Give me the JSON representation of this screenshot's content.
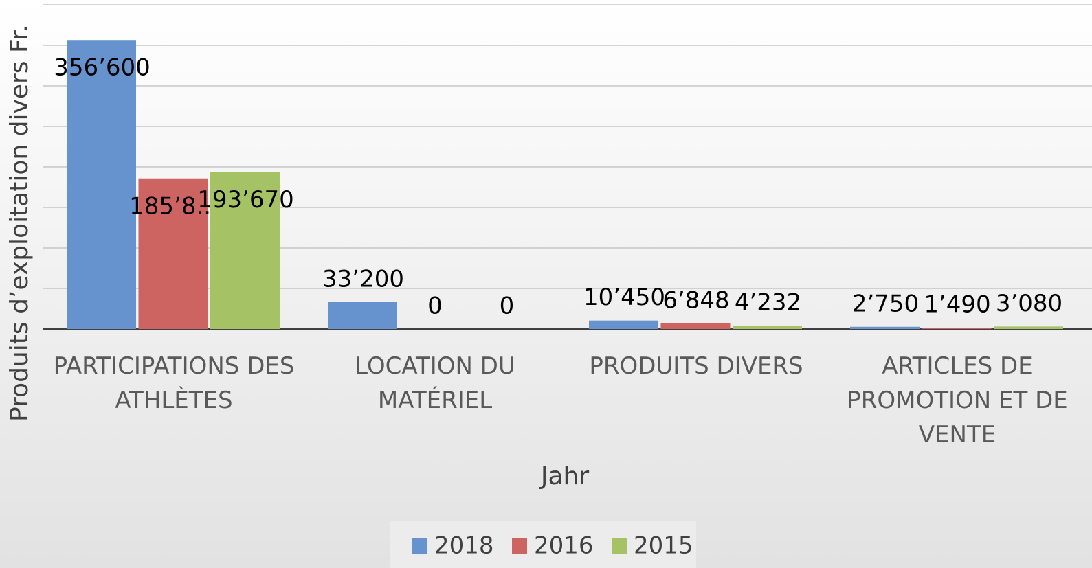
{
  "chart_data": {
    "type": "bar",
    "y_label": "Produits d’exploitation divers Fr.",
    "x_label": "Jahr",
    "categories": [
      "PARTICIPATIONS DES ATHLÈTES",
      "LOCATION DU MATÉRIEL",
      "PRODUITS DIVERS",
      "ARTICLES DE PROMOTION ET DE VENTE"
    ],
    "series": [
      {
        "name": "2018",
        "color": "#6693cd",
        "values": [
          356600,
          33200,
          10450,
          2750
        ],
        "value_labels": [
          "356’600",
          "33’200",
          "10’450",
          "2’750"
        ]
      },
      {
        "name": "2016",
        "color": "#cd6462",
        "values": [
          185800,
          0,
          6848,
          1490
        ],
        "value_labels": [
          "185’8...",
          "0",
          "6’848",
          "1’490"
        ]
      },
      {
        "name": "2015",
        "color": "#a5c265",
        "values": [
          193670,
          0,
          4232,
          3080
        ],
        "value_labels": [
          "193’670",
          "0",
          "4’232",
          "3’080"
        ]
      }
    ],
    "ylim": [
      0,
      400000
    ],
    "yticks": [
      0,
      50000,
      100000,
      150000,
      200000,
      250000,
      300000,
      350000,
      400000
    ],
    "grid": true,
    "legend": "bottom"
  }
}
